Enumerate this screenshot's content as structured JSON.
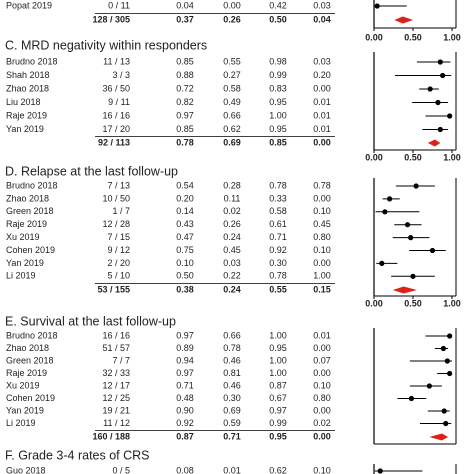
{
  "sections": [
    {
      "rows": [
        [
          "Popat 2019",
          "0 / 11",
          "0.04",
          "0.00",
          "0.42",
          "0.03"
        ]
      ],
      "summary": [
        "128 / 305",
        "0.37",
        "0.26",
        "0.50",
        "0.04"
      ]
    },
    {
      "title": "C. MRD negativity within responders",
      "rows": [
        [
          "Brudno 2018",
          "11 / 13",
          "0.85",
          "0.55",
          "0.98",
          "0.03"
        ],
        [
          "Shah 2018",
          "3 / 3",
          "0.88",
          "0.27",
          "0.99",
          "0.20"
        ],
        [
          "Zhao 2018",
          "36 / 50",
          "0.72",
          "0.58",
          "0.83",
          "0.00"
        ],
        [
          "Liu 2018",
          "9 / 11",
          "0.82",
          "0.49",
          "0.95",
          "0.01"
        ],
        [
          "Raje 2019",
          "16 / 16",
          "0.97",
          "0.66",
          "1.00",
          "0.01"
        ],
        [
          "Yan 2019",
          "17 / 20",
          "0.85",
          "0.62",
          "0.95",
          "0.01"
        ]
      ],
      "summary": [
        "92 / 113",
        "0.78",
        "0.69",
        "0.85",
        "0.00"
      ]
    },
    {
      "title": "D. Relapse at the last follow-up",
      "rows": [
        [
          "Brudno 2018",
          "7 / 13",
          "0.54",
          "0.28",
          "0.78",
          "0.78"
        ],
        [
          "Zhao 2018",
          "10 / 50",
          "0.20",
          "0.11",
          "0.33",
          "0.00"
        ],
        [
          "Green 2018",
          "1 / 7",
          "0.14",
          "0.02",
          "0.58",
          "0.10"
        ],
        [
          "Raje 2019",
          "12 / 28",
          "0.43",
          "0.26",
          "0.61",
          "0.45"
        ],
        [
          "Xu 2019",
          "7 / 15",
          "0.47",
          "0.24",
          "0.71",
          "0.80"
        ],
        [
          "Cohen 2019",
          "9 / 12",
          "0.75",
          "0.45",
          "0.92",
          "0.10"
        ],
        [
          "Yan 2019",
          "2 / 20",
          "0.10",
          "0.03",
          "0.30",
          "0.00"
        ],
        [
          "Li 2019",
          "5 / 10",
          "0.50",
          "0.22",
          "0.78",
          "1.00"
        ]
      ],
      "summary": [
        "53 / 155",
        "0.38",
        "0.24",
        "0.55",
        "0.15"
      ]
    },
    {
      "title": "E. Survival at the last follow-up",
      "rows": [
        [
          "Brudno 2018",
          "16 / 16",
          "0.97",
          "0.66",
          "1.00",
          "0.01"
        ],
        [
          "Zhao 2018",
          "51 / 57",
          "0.89",
          "0.78",
          "0.95",
          "0.00"
        ],
        [
          "Green 2018",
          "7 / 7",
          "0.94",
          "0.46",
          "1.00",
          "0.07"
        ],
        [
          "Raje 2019",
          "32 / 33",
          "0.97",
          "0.81",
          "1.00",
          "0.00"
        ],
        [
          "Xu 2019",
          "12 / 17",
          "0.71",
          "0.46",
          "0.87",
          "0.10"
        ],
        [
          "Cohen 2019",
          "12 / 25",
          "0.48",
          "0.30",
          "0.67",
          "0.80"
        ],
        [
          "Yan 2019",
          "19 / 21",
          "0.90",
          "0.69",
          "0.97",
          "0.00"
        ],
        [
          "Li 2019",
          "11 / 12",
          "0.92",
          "0.59",
          "0.99",
          "0.02"
        ]
      ],
      "summary": [
        "160 / 188",
        "0.87",
        "0.71",
        "0.95",
        "0.00"
      ]
    },
    {
      "title": "F. Grade 3-4 rates of CRS",
      "rows": [
        [
          "Guo 2018",
          "0 / 5",
          "0.08",
          "0.01",
          "0.62",
          "0.10"
        ]
      ]
    }
  ],
  "axis_ticks": [
    {
      "value": 0,
      "label": "0.00"
    },
    {
      "value": 0.5,
      "label": "0.50"
    },
    {
      "value": 1,
      "label": "1.00"
    }
  ],
  "diamond_color": "#e0201b"
}
